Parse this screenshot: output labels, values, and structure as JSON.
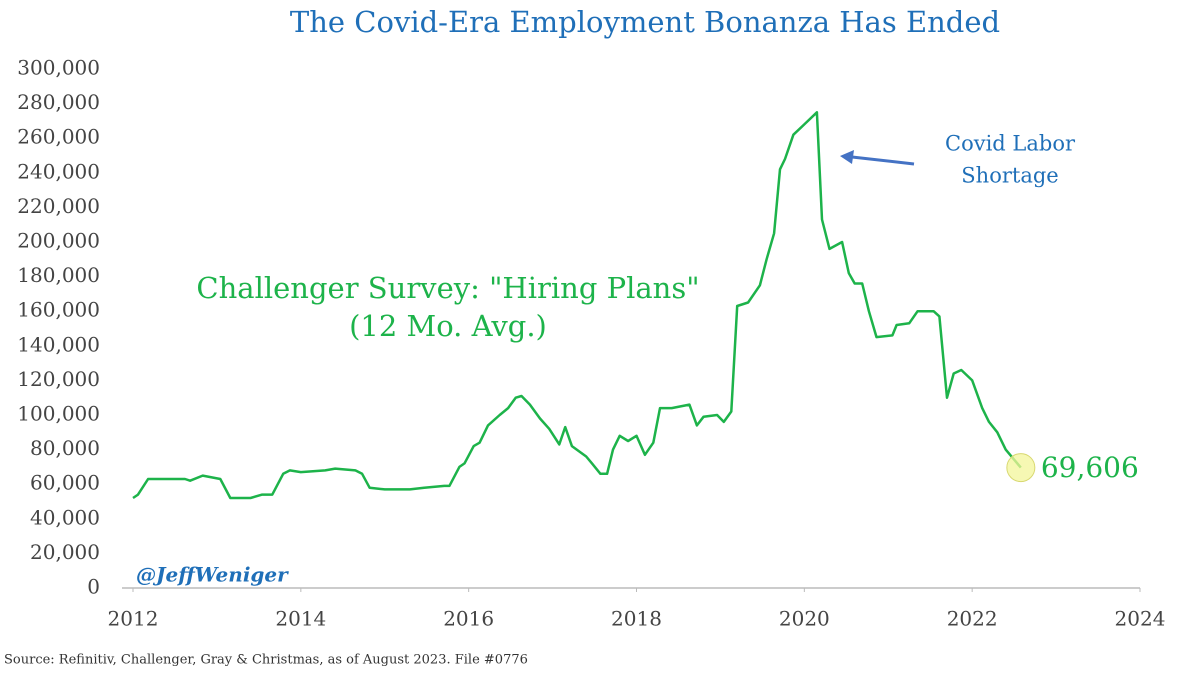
{
  "chart_data": {
    "type": "line",
    "title": "The Covid-Era Employment Bonanza Has Ended",
    "series_label": [
      "Challenger Survey: \"Hiring Plans\"",
      "(12 Mo. Avg.)"
    ],
    "annotation": [
      "Covid Labor",
      "Shortage"
    ],
    "handle": "@JeffWeniger",
    "source": "Source: Refinitiv, Challenger, Gray & Christmas, as of August 2023. File #0776",
    "color": "#1db34a",
    "x": [
      2012.0,
      2012.06,
      2012.18,
      2012.62,
      2012.68,
      2012.83,
      2013.04,
      2013.16,
      2013.4,
      2013.54,
      2013.66,
      2013.79,
      2013.87,
      2014.0,
      2014.29,
      2014.41,
      2014.65,
      2014.73,
      2014.82,
      2015.0,
      2015.3,
      2015.47,
      2015.71,
      2015.77,
      2015.89,
      2015.95,
      2016.06,
      2016.13,
      2016.23,
      2016.37,
      2016.47,
      2016.56,
      2016.63,
      2016.73,
      2016.85,
      2016.96,
      2017.08,
      2017.15,
      2017.23,
      2017.4,
      2017.47,
      2017.57,
      2017.65,
      2017.72,
      2017.8,
      2017.9,
      2018.0,
      2018.1,
      2018.2,
      2018.28,
      2018.42,
      2018.63,
      2018.72,
      2018.8,
      2018.96,
      2019.04,
      2019.13,
      2019.2,
      2019.33,
      2019.47,
      2019.55,
      2019.64,
      2019.71,
      2019.77,
      2019.87,
      2020.0,
      2020.15,
      2020.21,
      2020.3,
      2020.45,
      2020.53,
      2020.6,
      2020.69,
      2020.77,
      2020.86,
      2021.05,
      2021.1,
      2021.25,
      2021.35,
      2021.54,
      2021.61,
      2021.7,
      2021.78,
      2021.87,
      2022.0,
      2022.12,
      2022.2,
      2022.3,
      2022.4,
      2022.58
    ],
    "values": [
      52000,
      54000,
      63000,
      63000,
      62000,
      65000,
      63000,
      52000,
      52000,
      54000,
      54000,
      66000,
      68000,
      67000,
      68000,
      69000,
      68000,
      66000,
      58000,
      57000,
      57000,
      58000,
      59000,
      59000,
      70000,
      72000,
      82000,
      84000,
      94000,
      100000,
      104000,
      110000,
      111000,
      106000,
      98000,
      92000,
      83000,
      93000,
      82000,
      76000,
      72000,
      66000,
      66000,
      80000,
      88000,
      85000,
      88000,
      77000,
      84000,
      104000,
      104000,
      106000,
      94000,
      99000,
      100000,
      96000,
      102000,
      163000,
      165000,
      175000,
      190000,
      205000,
      242000,
      248000,
      262000,
      268000,
      275000,
      213000,
      196000,
      200000,
      182000,
      176000,
      176000,
      160000,
      145000,
      146000,
      152000,
      153000,
      160000,
      160000,
      157000,
      110000,
      124000,
      126000,
      120000,
      104000,
      96000,
      90000,
      80000,
      69606
    ],
    "value_labels": {
      "89": "69,606"
    },
    "xlim": [
      2012,
      2024
    ],
    "xticks": [
      2012,
      2014,
      2016,
      2018,
      2020,
      2022,
      2024
    ],
    "ylim": [
      0,
      300000
    ],
    "yticks": [
      0,
      {
        "value": 20000,
        "label": "20,000"
      },
      {
        "value": 40000,
        "label": "40,000"
      },
      {
        "value": 60000,
        "label": "60,000"
      },
      {
        "value": 80000,
        "label": "80,000"
      },
      {
        "value": 100000,
        "label": "100,000"
      },
      {
        "value": 120000,
        "label": "120,000"
      },
      {
        "value": 140000,
        "label": "140,000"
      },
      {
        "value": 160000,
        "label": "160,000"
      },
      {
        "value": 180000,
        "label": "180,000"
      },
      {
        "value": 200000,
        "label": "200,000"
      },
      {
        "value": 220000,
        "label": "220,000"
      },
      {
        "value": 240000,
        "label": "240,000"
      },
      {
        "value": 260000,
        "label": "260,000"
      },
      {
        "value": 280000,
        "label": "280,000"
      },
      {
        "value": 300000,
        "label": "300,000"
      }
    ],
    "grid": false
  }
}
